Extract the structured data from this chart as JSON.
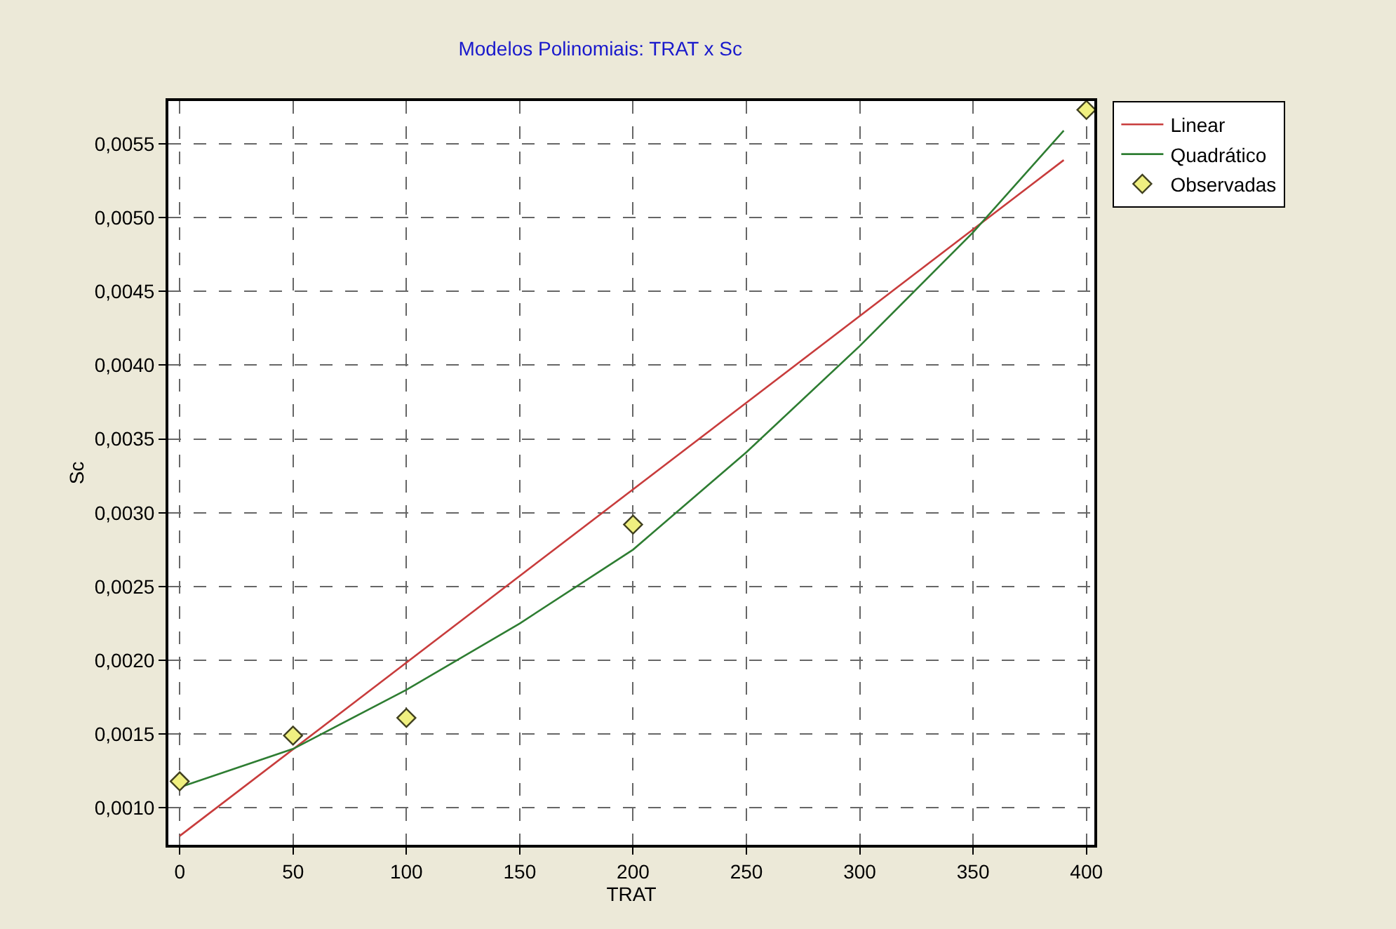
{
  "chart_data": {
    "type": "line",
    "title": "Modelos Polinomiais: TRAT x Sc",
    "xlabel": "TRAT",
    "ylabel": "Sc",
    "xlim": [
      -5,
      403.5
    ],
    "ylim": [
      0.00075,
      0.00579
    ],
    "xticks": [
      0,
      50,
      100,
      150,
      200,
      250,
      300,
      350,
      400
    ],
    "yticks": [
      {
        "value": 0.001,
        "label": "0,0010"
      },
      {
        "value": 0.0015,
        "label": "0,0015"
      },
      {
        "value": 0.002,
        "label": "0,0020"
      },
      {
        "value": 0.0025,
        "label": "0,0025"
      },
      {
        "value": 0.003,
        "label": "0,0030"
      },
      {
        "value": 0.0035,
        "label": "0,0035"
      },
      {
        "value": 0.004,
        "label": "0,0040"
      },
      {
        "value": 0.0045,
        "label": "0,0045"
      },
      {
        "value": 0.005,
        "label": "0,0050"
      },
      {
        "value": 0.0055,
        "label": "0,0055"
      }
    ],
    "grid": true,
    "legend": "top right",
    "line_style": "solid",
    "series": [
      {
        "name": "Linear",
        "color": "#c83c3c",
        "x": [
          0,
          390
        ],
        "values": [
          0.00081,
          0.00539
        ]
      },
      {
        "name": "Quadrático",
        "color": "#2e7d32",
        "x": [
          0,
          50,
          100,
          150,
          200,
          250,
          300,
          350,
          390
        ],
        "values": [
          0.00114,
          0.0014,
          0.0018,
          0.00225,
          0.00275,
          0.00341,
          0.00413,
          0.0049,
          0.00559
        ]
      },
      {
        "name": "Observadas",
        "type": "scatter",
        "marker": "diamond",
        "color": "#f0f080",
        "x": [
          0,
          50,
          100,
          200,
          400
        ],
        "values": [
          0.00118,
          0.00149,
          0.00161,
          0.00292,
          0.00573
        ]
      }
    ]
  }
}
